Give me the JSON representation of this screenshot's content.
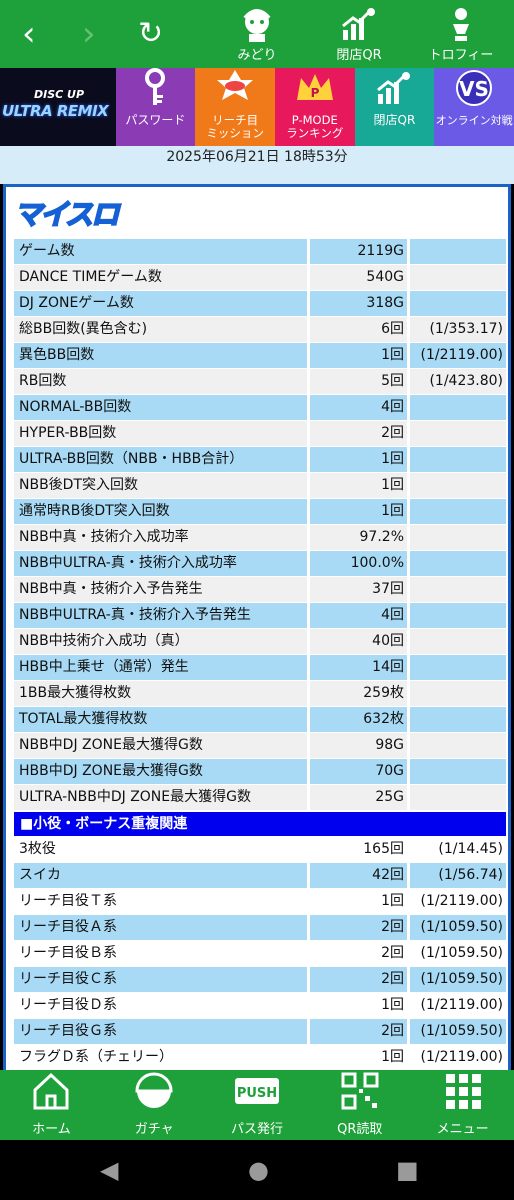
{
  "topbar": {
    "back_icon": "chevron-left-icon",
    "forward_icon": "chevron-right-icon",
    "reload_icon": "reload-icon",
    "buttons": [
      {
        "label": "みどり",
        "icon": "character-icon"
      },
      {
        "label": "閉店QR",
        "icon": "chart-moon-icon"
      },
      {
        "label": "トロフィー",
        "icon": "trophy-figure-icon"
      }
    ]
  },
  "banner": {
    "logo_top": "DISC UP",
    "logo_bottom": "ULTRA REMIX",
    "items": [
      {
        "label": "パスワード",
        "color": "#8b3bb4",
        "icon": "key-icon"
      },
      {
        "label": "リーチ目\nミッション",
        "color": "#f07a1a",
        "icon": "mission-badge-icon"
      },
      {
        "label": "P-MODE\nランキング",
        "color": "#e8185c",
        "icon": "crown-icon"
      },
      {
        "label": "閉店QR",
        "color": "#17a896",
        "icon": "chart-moon-icon"
      },
      {
        "label": "オンライン対戦",
        "color": "#6a5ae6",
        "icon": "vs-icon"
      }
    ]
  },
  "datetime": "2025年06月21日 18時53分",
  "logo_title": "マイスロ",
  "stats": [
    {
      "label": "ゲーム数",
      "value": "2119G",
      "ratio": ""
    },
    {
      "label": "DANCE TIMEゲーム数",
      "value": "540G",
      "ratio": ""
    },
    {
      "label": "DJ ZONEゲーム数",
      "value": "318G",
      "ratio": ""
    },
    {
      "label": "総BB回数(異色含む)",
      "value": "6回",
      "ratio": "(1/353.17)"
    },
    {
      "label": "異色BB回数",
      "value": "1回",
      "ratio": "(1/2119.00)"
    },
    {
      "label": "RB回数",
      "value": "5回",
      "ratio": "(1/423.80)"
    },
    {
      "label": "NORMAL-BB回数",
      "value": "4回",
      "ratio": ""
    },
    {
      "label": "HYPER-BB回数",
      "value": "2回",
      "ratio": ""
    },
    {
      "label": "ULTRA-BB回数（NBB・HBB合計）",
      "value": "1回",
      "ratio": ""
    },
    {
      "label": "NBB後DT突入回数",
      "value": "1回",
      "ratio": ""
    },
    {
      "label": "通常時RB後DT突入回数",
      "value": "1回",
      "ratio": ""
    },
    {
      "label": "NBB中真・技術介入成功率",
      "value": "97.2%",
      "ratio": ""
    },
    {
      "label": "NBB中ULTRA-真・技術介入成功率",
      "value": "100.0%",
      "ratio": ""
    },
    {
      "label": "NBB中真・技術介入予告発生",
      "value": "37回",
      "ratio": ""
    },
    {
      "label": "NBB中ULTRA-真・技術介入予告発生",
      "value": "4回",
      "ratio": ""
    },
    {
      "label": "NBB中技術介入成功（真）",
      "value": "40回",
      "ratio": ""
    },
    {
      "label": "HBB中上乗せ（通常）発生",
      "value": "14回",
      "ratio": ""
    },
    {
      "label": "1BB最大獲得枚数",
      "value": "259枚",
      "ratio": ""
    },
    {
      "label": "TOTAL最大獲得枚数",
      "value": "632枚",
      "ratio": ""
    },
    {
      "label": "NBB中DJ ZONE最大獲得G数",
      "value": "98G",
      "ratio": ""
    },
    {
      "label": "HBB中DJ ZONE最大獲得G数",
      "value": "70G",
      "ratio": ""
    },
    {
      "label": "ULTRA-NBB中DJ ZONE最大獲得G数",
      "value": "25G",
      "ratio": ""
    }
  ],
  "section_title": "■小役・ボーナス重複関連",
  "section_rows": [
    {
      "label": "3枚役",
      "value": "165回",
      "ratio": "(1/14.45)"
    },
    {
      "label": "スイカ",
      "value": "42回",
      "ratio": "(1/56.74)"
    },
    {
      "label": "リーチ目役Ｔ系",
      "value": "1回",
      "ratio": "(1/2119.00)"
    },
    {
      "label": "リーチ目役Ａ系",
      "value": "2回",
      "ratio": "(1/1059.50)"
    },
    {
      "label": "リーチ目役Ｂ系",
      "value": "2回",
      "ratio": "(1/1059.50)"
    },
    {
      "label": "リーチ目役Ｃ系",
      "value": "2回",
      "ratio": "(1/1059.50)"
    },
    {
      "label": "リーチ目役Ｄ系",
      "value": "1回",
      "ratio": "(1/2119.00)"
    },
    {
      "label": "リーチ目役Ｇ系",
      "value": "2回",
      "ratio": "(1/1059.50)"
    },
    {
      "label": "フラグＤ系（チェリー）",
      "value": "1回",
      "ratio": "(1/2119.00)"
    }
  ],
  "bottomnav": [
    {
      "label": "ホーム",
      "icon": "home-icon"
    },
    {
      "label": "ガチャ",
      "icon": "gacha-icon"
    },
    {
      "label": "パス発行",
      "icon": "push-icon"
    },
    {
      "label": "QR読取",
      "icon": "qr-icon"
    },
    {
      "label": "メニュー",
      "icon": "grid-menu-icon"
    }
  ],
  "sysnav": {
    "back": "system-back-icon",
    "home": "system-home-icon",
    "recents": "system-recents-icon"
  }
}
